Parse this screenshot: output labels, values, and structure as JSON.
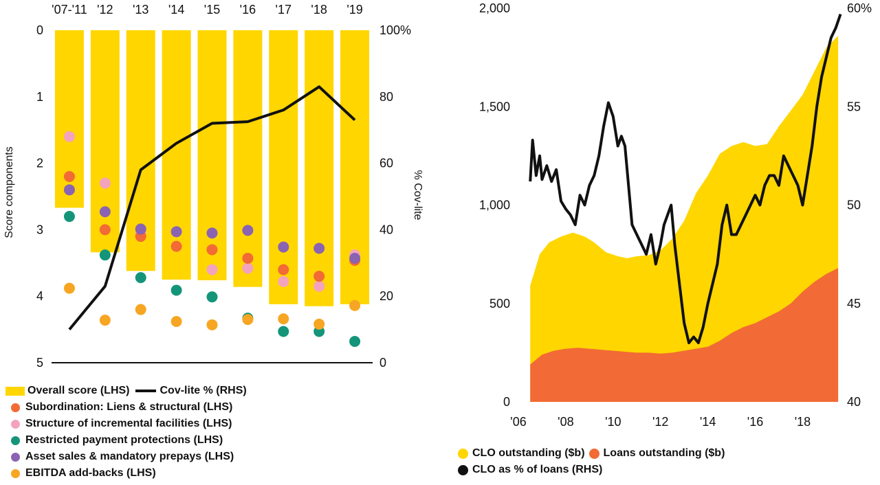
{
  "chart_data": [
    {
      "type": "bar",
      "categories": [
        "'07-'11",
        "'12",
        "'13",
        "'14",
        "'15",
        "'16",
        "'17",
        "'18",
        "'19"
      ],
      "ylabel": "Score components",
      "y2label": "% Cov-lite",
      "ylim": [
        0,
        5
      ],
      "y_inverted": true,
      "y2lim": [
        0,
        100
      ],
      "y_ticks": [
        "0",
        "1",
        "2",
        "3",
        "4",
        "5"
      ],
      "y2_ticks": [
        "100%",
        "80",
        "60",
        "40",
        "20",
        "0"
      ],
      "colors": {
        "overall": "#FFD600",
        "covlite": "#111111",
        "subordination": "#F26A35",
        "incremental": "#F4A3BE",
        "restricted": "#14957A",
        "asset_sales": "#8A63B2",
        "ebitda": "#F7A623"
      },
      "series": [
        {
          "name": "Overall score (LHS)",
          "key": "overall",
          "kind": "bar",
          "values": [
            2.67,
            3.34,
            3.62,
            3.75,
            3.76,
            3.86,
            4.12,
            4.15,
            4.12
          ]
        },
        {
          "name": "Cov-lite % (RHS)",
          "key": "covlite",
          "kind": "line",
          "axis": "right",
          "values": [
            10,
            23,
            58,
            66,
            72,
            72.5,
            76,
            83,
            73
          ]
        },
        {
          "name": "Subordination: Liens & structural (LHS)",
          "key": "subordination",
          "kind": "dot",
          "values": [
            2.2,
            3.0,
            3.1,
            3.25,
            3.3,
            3.43,
            3.6,
            3.7,
            3.46
          ]
        },
        {
          "name": "Structure of incremental facilities (LHS)",
          "key": "incremental",
          "kind": "dot",
          "values": [
            1.6,
            2.3,
            3.05,
            3.25,
            3.6,
            3.58,
            3.78,
            3.85,
            3.38
          ]
        },
        {
          "name": "Restricted payment protections (LHS)",
          "key": "restricted",
          "kind": "dot",
          "values": [
            2.8,
            3.38,
            3.72,
            3.91,
            4.01,
            4.33,
            4.53,
            4.53,
            4.68
          ]
        },
        {
          "name": "Asset sales & mandatory prepays (LHS)",
          "key": "asset_sales",
          "kind": "dot",
          "values": [
            2.4,
            2.73,
            2.99,
            3.03,
            3.05,
            3.01,
            3.26,
            3.28,
            3.43
          ]
        },
        {
          "name": "EBITDA add-backs (LHS)",
          "key": "ebitda",
          "kind": "dot",
          "values": [
            3.88,
            4.36,
            4.2,
            4.38,
            4.43,
            4.35,
            4.34,
            4.42,
            4.14
          ]
        }
      ]
    },
    {
      "type": "area",
      "x_ticks": [
        "'06",
        "'08",
        "'10",
        "'12",
        "'14",
        "'16",
        "'18"
      ],
      "y_ticks": [
        "0",
        "500",
        "1,000",
        "1,500",
        "2,000"
      ],
      "y2_ticks": [
        "40",
        "45",
        "50",
        "55",
        "60%"
      ],
      "ylim": [
        0,
        2000
      ],
      "y2lim": [
        40,
        60
      ],
      "xlim": [
        2006,
        2019.7
      ],
      "colors": {
        "clo": "#FFD600",
        "loans": "#F26A35",
        "ratio": "#111111"
      },
      "series": [
        {
          "name": "CLO outstanding ($b)",
          "key": "clo",
          "kind": "area",
          "x": [
            2006.5,
            2006.9,
            2007.3,
            2007.8,
            2008.3,
            2008.8,
            2009.2,
            2009.7,
            2010.2,
            2010.6,
            2011.0,
            2011.5,
            2012.0,
            2012.5,
            2013.0,
            2013.5,
            2014.0,
            2014.5,
            2015.0,
            2015.5,
            2016.0,
            2016.5,
            2017.0,
            2017.5,
            2018.0,
            2018.5,
            2019.0,
            2019.5
          ],
          "values": [
            590,
            750,
            810,
            840,
            860,
            840,
            810,
            760,
            740,
            730,
            740,
            745,
            770,
            830,
            920,
            1060,
            1150,
            1260,
            1300,
            1320,
            1300,
            1310,
            1400,
            1480,
            1560,
            1680,
            1800,
            1860
          ]
        },
        {
          "name": "Loans outstanding ($b)",
          "key": "loans",
          "kind": "area",
          "x": [
            2006.5,
            2007.0,
            2007.5,
            2008.0,
            2008.5,
            2009.0,
            2009.5,
            2010.0,
            2010.5,
            2011.0,
            2011.5,
            2012.0,
            2012.5,
            2013.0,
            2013.5,
            2014.0,
            2014.5,
            2015.0,
            2015.5,
            2016.0,
            2016.5,
            2017.0,
            2017.5,
            2018.0,
            2018.5,
            2019.0,
            2019.5
          ],
          "values": [
            190,
            240,
            260,
            270,
            275,
            270,
            265,
            260,
            255,
            250,
            250,
            245,
            250,
            260,
            270,
            280,
            310,
            350,
            380,
            400,
            430,
            460,
            500,
            560,
            610,
            650,
            680
          ]
        },
        {
          "name": "CLO as % of loans (RHS)",
          "key": "ratio",
          "kind": "line",
          "axis": "right",
          "x": [
            2006.5,
            2006.6,
            2006.75,
            2006.9,
            2007.0,
            2007.2,
            2007.4,
            2007.6,
            2007.8,
            2008.0,
            2008.2,
            2008.4,
            2008.6,
            2008.8,
            2009.0,
            2009.2,
            2009.4,
            2009.6,
            2009.8,
            2010.0,
            2010.2,
            2010.35,
            2010.5,
            2010.65,
            2010.8,
            2011.0,
            2011.2,
            2011.4,
            2011.6,
            2011.8,
            2012.0,
            2012.15,
            2012.3,
            2012.45,
            2012.6,
            2012.8,
            2013.0,
            2013.2,
            2013.4,
            2013.6,
            2013.8,
            2014.0,
            2014.2,
            2014.4,
            2014.6,
            2014.8,
            2015.0,
            2015.2,
            2015.4,
            2015.6,
            2015.8,
            2016.0,
            2016.2,
            2016.4,
            2016.6,
            2016.8,
            2017.0,
            2017.2,
            2017.4,
            2017.6,
            2017.8,
            2018.0,
            2018.2,
            2018.4,
            2018.6,
            2018.8,
            2019.0,
            2019.2,
            2019.4,
            2019.6
          ],
          "values": [
            51.2,
            53.3,
            51.5,
            52.5,
            51.3,
            52.0,
            51.2,
            51.8,
            50.2,
            49.8,
            49.5,
            49.0,
            50.5,
            50.0,
            51.0,
            51.5,
            52.5,
            54.0,
            55.2,
            54.5,
            53.0,
            53.5,
            53.0,
            51.0,
            49.0,
            48.5,
            48.0,
            47.5,
            48.5,
            47.0,
            48.0,
            49.0,
            49.5,
            50.0,
            48.0,
            46.0,
            44.0,
            43.0,
            43.3,
            43.0,
            43.8,
            45.0,
            46.0,
            47.0,
            49.0,
            50.0,
            48.5,
            48.5,
            49.0,
            49.5,
            50.0,
            50.5,
            50.0,
            51.0,
            51.5,
            51.5,
            51.0,
            52.5,
            52.0,
            51.5,
            51.0,
            50.0,
            51.5,
            53.0,
            55.0,
            56.5,
            57.5,
            58.5,
            59.0,
            59.7
          ]
        }
      ]
    }
  ],
  "legend_left": [
    {
      "label": "Overall score (LHS)",
      "color": "#FFD600"
    },
    {
      "label": "Cov-lite % (RHS)",
      "color": "#111111"
    },
    {
      "label": "Subordination: Liens & structural (LHS)",
      "color": "#F26A35"
    },
    {
      "label": "Structure of incremental facilities (LHS)",
      "color": "#F4A3BE"
    },
    {
      "label": "Restricted payment protections (LHS)",
      "color": "#14957A"
    },
    {
      "label": "Asset sales & mandatory prepays (LHS)",
      "color": "#8A63B2"
    },
    {
      "label": "EBITDA add-backs (LHS)",
      "color": "#F7A623"
    }
  ],
  "legend_right": [
    {
      "label": "CLO outstanding ($b)",
      "color": "#FFD600"
    },
    {
      "label": "Loans outstanding ($b)",
      "color": "#F26A35"
    },
    {
      "label": "CLO as % of loans (RHS)",
      "color": "#111111"
    }
  ]
}
